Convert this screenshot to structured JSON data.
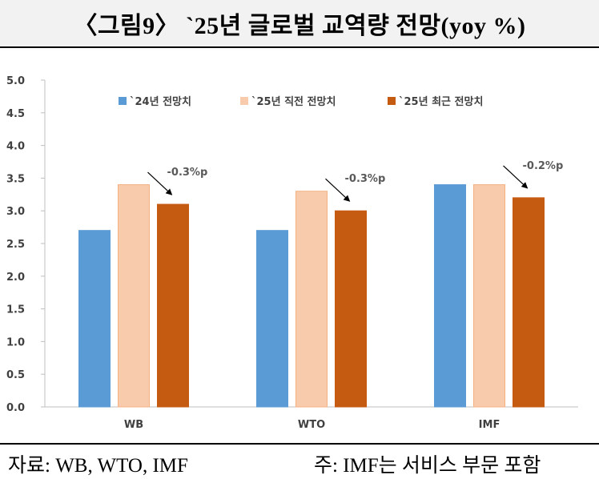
{
  "title": "〈그림9〉 `25년 글로벌 교역량 전망(yoy %)",
  "footer": {
    "source": "자료: WB, WTO, IMF",
    "note": "주: IMF는 서비스 부문 포함"
  },
  "chart_data": {
    "type": "bar",
    "categories": [
      "WB",
      "WTO",
      "IMF"
    ],
    "series": [
      {
        "name": "`24년 전망치",
        "values": [
          2.7,
          2.7,
          3.4
        ],
        "color": "#5b9bd5"
      },
      {
        "name": "`25년 직전 전망치",
        "values": [
          3.4,
          3.3,
          3.4
        ],
        "color": "#f8cbad"
      },
      {
        "name": "`25년 최근 전망치",
        "values": [
          3.1,
          3.0,
          3.2
        ],
        "color": "#c55a11"
      }
    ],
    "annotations": [
      "-0.3%p",
      "-0.3%p",
      "-0.2%p"
    ],
    "ylim": [
      0,
      5.0
    ],
    "yticks": [
      "0.0",
      "0.5",
      "1.0",
      "1.5",
      "2.0",
      "2.5",
      "3.0",
      "3.5",
      "4.0",
      "4.5",
      "5.0"
    ],
    "legend_position": "top",
    "grid": false,
    "title": "",
    "xlabel": "",
    "ylabel": ""
  }
}
